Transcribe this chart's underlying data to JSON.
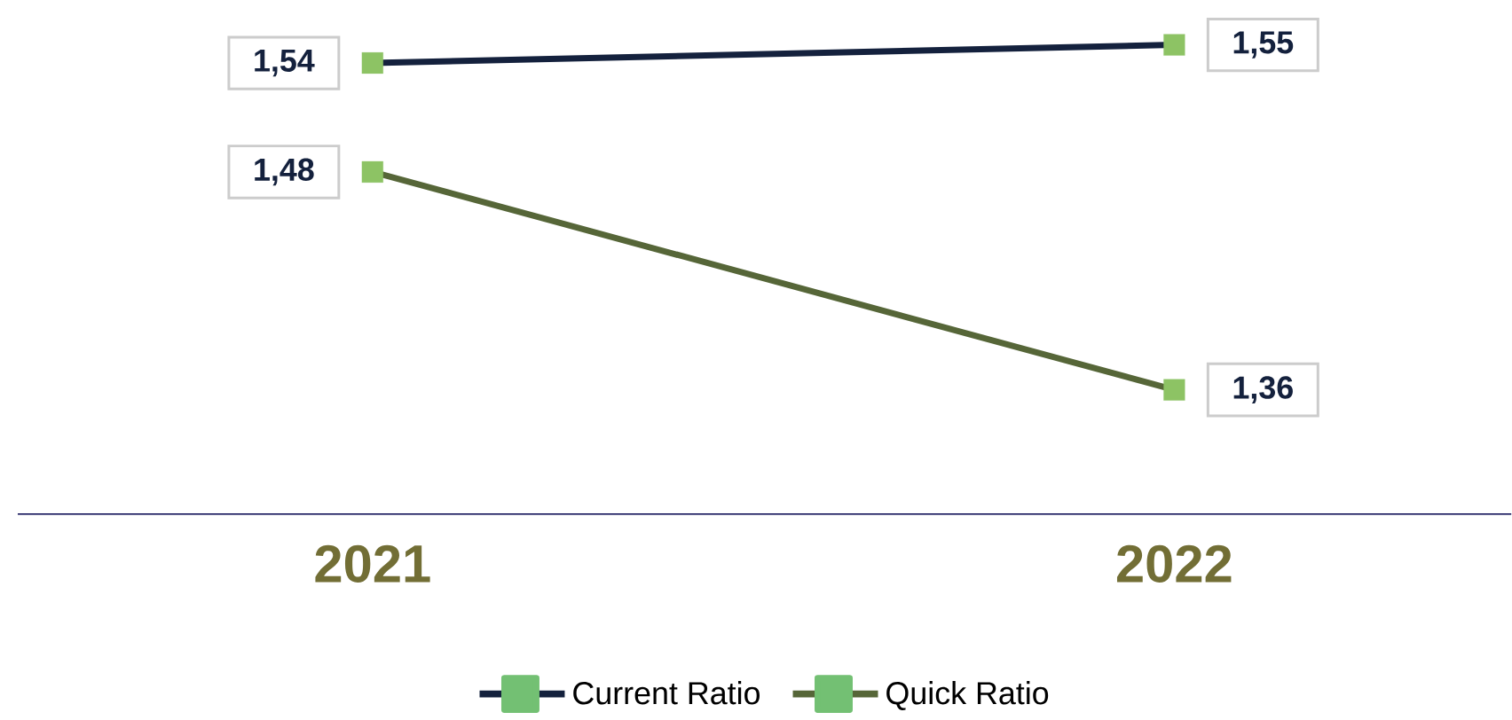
{
  "chart_data": {
    "type": "line",
    "categories": [
      "2021",
      "2022"
    ],
    "series": [
      {
        "name": "Current Ratio",
        "color": "#14213d",
        "values": [
          1.54,
          1.55
        ],
        "value_labels": [
          "1,54",
          "1,55"
        ]
      },
      {
        "name": "Quick Ratio",
        "color": "#566638",
        "values": [
          1.48,
          1.36
        ],
        "value_labels": [
          "1,48",
          "1,36"
        ]
      }
    ],
    "relative": false,
    "marker": "square",
    "line_style": "solid",
    "legend": "bottom",
    "grid": false,
    "tick_labels": "x"
  }
}
